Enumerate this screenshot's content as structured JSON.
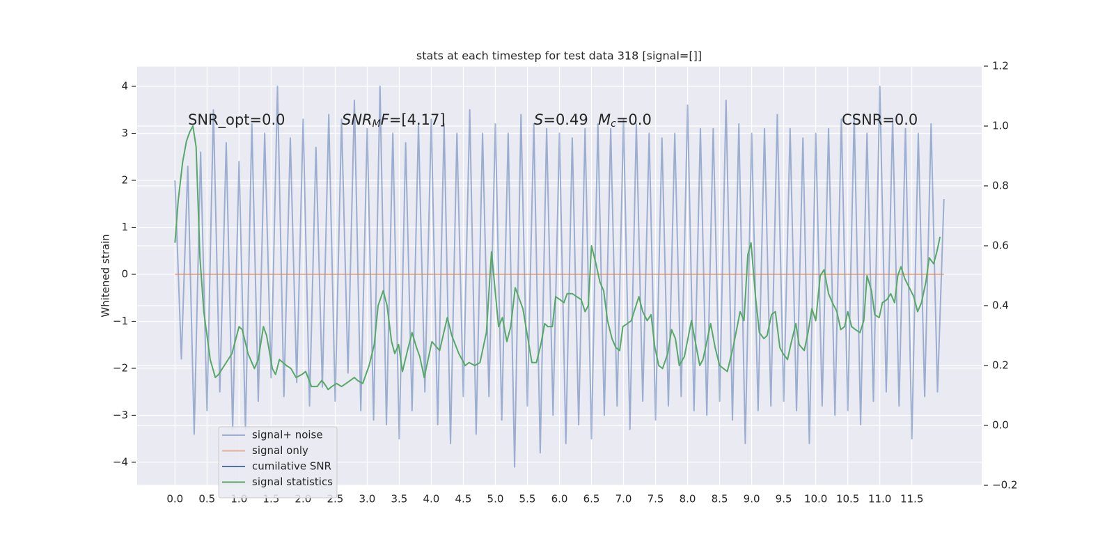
{
  "chart_data": {
    "type": "line",
    "title": "stats at each timestep for test data 318 [signal=[]]",
    "ylabel": "Whitened strain",
    "xlim": [
      -0.59,
      12.59
    ],
    "ylim": [
      -4.49,
      4.43
    ],
    "y2lim": [
      -0.2,
      1.2
    ],
    "grid": true,
    "legend": "lower left",
    "background": "#eaeaf2",
    "xticks": [
      {
        "value": 0,
        "label": "0.0"
      },
      0.5,
      {
        "value": 1,
        "label": "1.0"
      },
      1.5,
      {
        "value": 2,
        "label": "2.0"
      },
      2.5,
      {
        "value": 3,
        "label": "3.0"
      },
      3.5,
      {
        "value": 4,
        "label": "4.0"
      },
      4.5,
      {
        "value": 5,
        "label": "5.0"
      },
      5.5,
      {
        "value": 6,
        "label": "6.0"
      },
      6.5,
      {
        "value": 7,
        "label": "7.0"
      },
      7.5,
      {
        "value": 8,
        "label": "8.0"
      },
      8.5,
      {
        "value": 9,
        "label": "9.0"
      },
      9.5,
      {
        "value": 10,
        "label": "10.0"
      },
      10.5,
      {
        "value": 11,
        "label": "11.0"
      },
      11.5
    ],
    "yticks": [
      {
        "value": -4,
        "label": "−4"
      },
      {
        "value": -3,
        "label": "−3"
      },
      {
        "value": -2,
        "label": "−2"
      },
      {
        "value": -1,
        "label": "−1"
      },
      0,
      1,
      2,
      3,
      4
    ],
    "y2ticks": [
      {
        "value": -0.2,
        "label": "−0.2"
      },
      {
        "value": 0,
        "label": "0.0"
      },
      0.2,
      0.4,
      0.6,
      0.8,
      {
        "value": 1,
        "label": "1.0"
      },
      1.2
    ],
    "annotations": [
      [
        {
          "text": "SNR_opt=0.0",
          "style": "normal"
        }
      ],
      [
        {
          "text": "SNR",
          "style": "italic"
        },
        {
          "text": "M",
          "style": "sub"
        },
        {
          "text": "F",
          "style": "italic"
        },
        {
          "text": "=[4.17]",
          "style": "normal"
        }
      ],
      [
        {
          "text": "S",
          "style": "italic"
        },
        {
          "text": "=0.49",
          "style": "normal"
        }
      ],
      [
        {
          "text": "M",
          "style": "italic"
        },
        {
          "text": "c",
          "style": "sub"
        },
        {
          "text": "=0.0",
          "style": "normal"
        }
      ],
      [
        {
          "text": "CSNR=0.0",
          "style": "normal"
        }
      ]
    ],
    "series": [
      {
        "name": "signal+ noise",
        "color": "#4c72b0",
        "alpha": 0.5,
        "x": [
          0,
          0.1,
          0.2,
          0.3,
          0.4,
          0.5,
          0.6,
          0.7,
          0.8,
          0.9,
          1,
          1.1,
          1.2,
          1.3,
          1.4,
          1.5,
          1.6,
          1.7,
          1.8,
          1.9,
          2,
          2.1,
          2.2,
          2.3,
          2.4,
          2.5,
          2.6,
          2.7,
          2.8,
          2.9,
          3,
          3.1,
          3.2,
          3.3,
          3.4,
          3.5,
          3.6,
          3.7,
          3.8,
          3.9,
          4,
          4.1,
          4.2,
          4.3,
          4.4,
          4.5,
          4.6,
          4.7,
          4.8,
          4.9,
          5,
          5.1,
          5.2,
          5.3,
          5.4,
          5.5,
          5.6,
          5.7,
          5.8,
          5.9,
          6,
          6.1,
          6.2,
          6.3,
          6.4,
          6.5,
          6.6,
          6.7,
          6.8,
          6.9,
          7,
          7.1,
          7.2,
          7.3,
          7.4,
          7.5,
          7.6,
          7.7,
          7.8,
          7.9,
          8,
          8.1,
          8.2,
          8.3,
          8.4,
          8.5,
          8.6,
          8.7,
          8.8,
          8.9,
          9,
          9.1,
          9.2,
          9.3,
          9.4,
          9.5,
          9.6,
          9.7,
          9.8,
          9.9,
          10,
          10.1,
          10.2,
          10.3,
          10.4,
          10.5,
          10.6,
          10.7,
          10.8,
          10.9,
          11,
          11.1,
          11.2,
          11.3,
          11.4,
          11.5,
          11.6,
          11.7,
          11.8,
          11.9,
          12
        ],
        "values": [
          2.0,
          -1.8,
          2.3,
          -3.4,
          2.6,
          -2.9,
          3.5,
          -2.5,
          2.8,
          -3.3,
          2.4,
          -3.3,
          3.2,
          -2.7,
          3.0,
          -2.2,
          4.0,
          -2.6,
          2.9,
          -2.3,
          3.3,
          -2.8,
          2.7,
          -2.4,
          3.4,
          -2.7,
          3.3,
          -2.1,
          3.7,
          -2.9,
          3.1,
          -3.1,
          4.0,
          -3.2,
          3.0,
          -3.5,
          2.8,
          -2.9,
          3.2,
          -2.5,
          3.3,
          -3.2,
          3.2,
          -3.6,
          3.0,
          -2.6,
          3.5,
          -3.4,
          3.0,
          -2.6,
          3.2,
          -3.1,
          3.0,
          -4.1,
          3.4,
          -2.8,
          3.2,
          -3.8,
          3.1,
          -3.0,
          3.0,
          -3.6,
          2.9,
          -3.2,
          3.1,
          -3.5,
          3.2,
          -3.0,
          3.1,
          -2.8,
          3.3,
          -3.3,
          3.2,
          -2.7,
          3.0,
          -3.1,
          2.9,
          -2.8,
          3.0,
          -2.6,
          3.6,
          -2.9,
          3.1,
          -3.0,
          3.1,
          -2.7,
          3.7,
          -3.1,
          3.2,
          -3.6,
          3.0,
          -2.9,
          3.1,
          -2.8,
          3.4,
          -2.7,
          3.1,
          -2.9,
          2.9,
          -3.6,
          3.0,
          -2.8,
          3.1,
          -3.0,
          3.3,
          -2.9,
          3.4,
          -3.2,
          3.0,
          -2.7,
          4.0,
          -2.5,
          3.3,
          -2.8,
          3.1,
          -3.5,
          3.0,
          -2.6,
          3.2,
          -2.5,
          1.6
        ]
      },
      {
        "name": "signal only",
        "color": "#dd8452",
        "alpha": 0.6,
        "x": [
          0,
          12
        ],
        "values": [
          0,
          0
        ]
      },
      {
        "name": "cumilative SNR",
        "color": "#4c72b0",
        "alpha": 1,
        "x": [],
        "values": []
      },
      {
        "name": "signal statistics",
        "color": "#55a868",
        "alpha": 1,
        "axis": "y2",
        "x": [
          0,
          0.05,
          0.12,
          0.18,
          0.23,
          0.28,
          0.33,
          0.39,
          0.45,
          0.5,
          0.55,
          0.63,
          0.68,
          0.77,
          0.89,
          1.0,
          1.05,
          1.14,
          1.24,
          1.3,
          1.38,
          1.43,
          1.52,
          1.57,
          1.63,
          1.74,
          1.81,
          1.89,
          1.98,
          2.04,
          2.13,
          2.22,
          2.29,
          2.33,
          2.39,
          2.45,
          2.52,
          2.6,
          2.67,
          2.8,
          2.85,
          2.93,
          3.03,
          3.11,
          3.17,
          3.25,
          3.31,
          3.38,
          3.43,
          3.49,
          3.55,
          3.64,
          3.7,
          3.77,
          3.82,
          3.89,
          4.01,
          4.13,
          4.25,
          4.32,
          4.43,
          4.53,
          4.59,
          4.68,
          4.76,
          4.86,
          4.94,
          5.01,
          5.05,
          5.11,
          5.18,
          5.24,
          5.31,
          5.43,
          5.57,
          5.64,
          5.71,
          5.77,
          5.82,
          5.89,
          5.94,
          6.01,
          6.07,
          6.12,
          6.2,
          6.27,
          6.34,
          6.4,
          6.45,
          6.5,
          6.57,
          6.63,
          6.69,
          6.75,
          6.82,
          6.88,
          6.94,
          6.99,
          7.06,
          7.12,
          7.18,
          7.24,
          7.3,
          7.37,
          7.43,
          7.49,
          7.55,
          7.61,
          7.69,
          7.75,
          7.81,
          7.87,
          7.95,
          8.06,
          8.19,
          8.24,
          8.36,
          8.43,
          8.5,
          8.62,
          8.71,
          8.82,
          8.88,
          8.94,
          8.99,
          9.06,
          9.12,
          9.19,
          9.24,
          9.31,
          9.37,
          9.44,
          9.49,
          9.56,
          9.61,
          9.69,
          9.74,
          9.82,
          9.88,
          9.94,
          10.0,
          10.07,
          10.13,
          10.2,
          10.26,
          10.33,
          10.39,
          10.45,
          10.5,
          10.56,
          10.62,
          10.69,
          10.75,
          10.8,
          10.87,
          10.92,
          10.99,
          11.04,
          11.11,
          11.17,
          11.23,
          11.28,
          11.33,
          11.39,
          11.46,
          11.53,
          11.59,
          11.65,
          11.72,
          11.77,
          11.84,
          11.89,
          11.94
        ],
        "values": [
          0.61,
          0.75,
          0.88,
          0.95,
          0.98,
          1.0,
          0.93,
          0.56,
          0.38,
          0.3,
          0.22,
          0.16,
          0.17,
          0.2,
          0.24,
          0.33,
          0.32,
          0.24,
          0.19,
          0.22,
          0.33,
          0.3,
          0.19,
          0.17,
          0.22,
          0.2,
          0.19,
          0.16,
          0.17,
          0.18,
          0.13,
          0.13,
          0.15,
          0.14,
          0.12,
          0.13,
          0.14,
          0.13,
          0.14,
          0.16,
          0.15,
          0.14,
          0.2,
          0.27,
          0.4,
          0.45,
          0.4,
          0.28,
          0.24,
          0.27,
          0.18,
          0.26,
          0.31,
          0.26,
          0.23,
          0.16,
          0.28,
          0.25,
          0.36,
          0.3,
          0.24,
          0.2,
          0.21,
          0.2,
          0.21,
          0.31,
          0.58,
          0.42,
          0.33,
          0.36,
          0.28,
          0.33,
          0.46,
          0.39,
          0.21,
          0.21,
          0.27,
          0.34,
          0.33,
          0.33,
          0.43,
          0.42,
          0.41,
          0.44,
          0.44,
          0.43,
          0.42,
          0.38,
          0.4,
          0.6,
          0.54,
          0.48,
          0.45,
          0.35,
          0.29,
          0.26,
          0.25,
          0.33,
          0.34,
          0.35,
          0.39,
          0.43,
          0.38,
          0.35,
          0.37,
          0.26,
          0.2,
          0.19,
          0.24,
          0.32,
          0.29,
          0.2,
          0.23,
          0.35,
          0.2,
          0.22,
          0.34,
          0.26,
          0.2,
          0.18,
          0.26,
          0.38,
          0.35,
          0.57,
          0.61,
          0.43,
          0.31,
          0.29,
          0.3,
          0.37,
          0.38,
          0.26,
          0.24,
          0.22,
          0.27,
          0.34,
          0.27,
          0.25,
          0.31,
          0.39,
          0.35,
          0.5,
          0.52,
          0.44,
          0.41,
          0.38,
          0.32,
          0.33,
          0.38,
          0.33,
          0.32,
          0.31,
          0.35,
          0.5,
          0.45,
          0.37,
          0.36,
          0.41,
          0.42,
          0.44,
          0.41,
          0.5,
          0.53,
          0.49,
          0.46,
          0.43,
          0.38,
          0.41,
          0.48,
          0.56,
          0.54,
          0.58,
          0.63
        ]
      }
    ]
  }
}
